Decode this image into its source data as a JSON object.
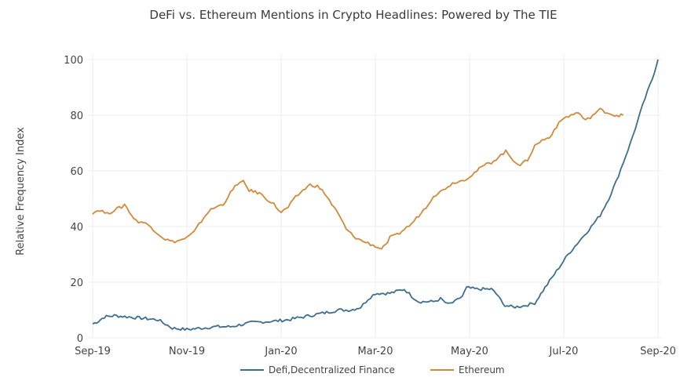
{
  "chart_data": {
    "type": "line",
    "title": "DeFi vs. Ethereum Mentions in Crypto Headlines: Powered by The TIE",
    "xlabel": "",
    "ylabel": "Relative Frequency Index",
    "ylim": [
      0,
      100
    ],
    "yticks": [
      0,
      20,
      40,
      60,
      80,
      100
    ],
    "xticks": [
      "Sep-19",
      "Nov-19",
      "Jan-20",
      "Mar-20",
      "May-20",
      "Jul-20",
      "Sep-20"
    ],
    "x_range_days": [
      0,
      366
    ],
    "grid": true,
    "legend_position": "bottom",
    "series": [
      {
        "name": "Defi,Decentralized Finance",
        "color": "#3d6e8f",
        "points": [
          [
            0,
            5
          ],
          [
            4,
            6
          ],
          [
            8,
            7.5
          ],
          [
            15,
            8
          ],
          [
            25,
            7.5
          ],
          [
            35,
            7
          ],
          [
            45,
            6.5
          ],
          [
            50,
            5
          ],
          [
            55,
            3.5
          ],
          [
            65,
            3
          ],
          [
            75,
            3.5
          ],
          [
            85,
            4
          ],
          [
            95,
            4
          ],
          [
            110,
            5.5
          ],
          [
            125,
            6
          ],
          [
            135,
            6.5
          ],
          [
            150,
            8
          ],
          [
            160,
            9
          ],
          [
            170,
            10
          ],
          [
            178,
            10
          ],
          [
            185,
            11
          ],
          [
            190,
            14
          ],
          [
            195,
            16
          ],
          [
            205,
            16
          ],
          [
            215,
            17.5
          ],
          [
            220,
            15
          ],
          [
            225,
            13
          ],
          [
            235,
            13
          ],
          [
            240,
            14
          ],
          [
            245,
            12
          ],
          [
            250,
            13
          ],
          [
            255,
            15
          ],
          [
            258,
            18
          ],
          [
            265,
            17.5
          ],
          [
            275,
            17.5
          ],
          [
            280,
            15
          ],
          [
            283,
            12
          ],
          [
            290,
            11
          ],
          [
            297,
            11.5
          ],
          [
            305,
            12.5
          ],
          [
            312,
            18
          ],
          [
            320,
            24
          ],
          [
            328,
            30
          ],
          [
            336,
            35
          ],
          [
            344,
            40
          ],
          [
            350,
            44
          ],
          [
            356,
            50
          ],
          [
            361,
            56
          ],
          [
            366,
            63
          ],
          [
            371,
            70
          ],
          [
            376,
            78
          ],
          [
            381,
            86
          ],
          [
            386,
            93
          ],
          [
            390,
            100
          ]
        ]
      },
      {
        "name": "Ethereum",
        "color": "#d4883a",
        "points": [
          [
            0,
            45
          ],
          [
            5,
            46
          ],
          [
            10,
            44.5
          ],
          [
            15,
            46
          ],
          [
            20,
            47
          ],
          [
            22,
            48
          ],
          [
            27,
            44
          ],
          [
            30,
            42
          ],
          [
            35,
            41.5
          ],
          [
            40,
            40
          ],
          [
            45,
            37.5
          ],
          [
            50,
            35.5
          ],
          [
            55,
            34.5
          ],
          [
            60,
            35
          ],
          [
            65,
            36
          ],
          [
            70,
            38
          ],
          [
            75,
            42
          ],
          [
            80,
            45.5
          ],
          [
            85,
            47
          ],
          [
            90,
            48
          ],
          [
            95,
            52
          ],
          [
            100,
            55.5
          ],
          [
            104,
            56
          ],
          [
            108,
            53
          ],
          [
            115,
            52
          ],
          [
            120,
            50
          ],
          [
            125,
            48
          ],
          [
            130,
            45
          ],
          [
            135,
            47
          ],
          [
            140,
            50.5
          ],
          [
            145,
            53
          ],
          [
            150,
            55
          ],
          [
            155,
            54.5
          ],
          [
            160,
            52
          ],
          [
            165,
            48
          ],
          [
            170,
            44
          ],
          [
            175,
            39
          ],
          [
            180,
            36.5
          ],
          [
            185,
            35
          ],
          [
            190,
            34
          ],
          [
            195,
            33
          ],
          [
            198,
            32
          ],
          [
            202,
            33
          ],
          [
            205,
            36
          ],
          [
            210,
            37
          ],
          [
            215,
            39
          ],
          [
            220,
            41
          ],
          [
            225,
            44
          ],
          [
            230,
            47
          ],
          [
            235,
            51
          ],
          [
            240,
            52.5
          ],
          [
            245,
            54.5
          ],
          [
            250,
            56
          ],
          [
            255,
            56.5
          ],
          [
            260,
            58
          ],
          [
            265,
            60
          ],
          [
            270,
            62
          ],
          [
            275,
            63
          ],
          [
            280,
            65
          ],
          [
            285,
            67
          ],
          [
            290,
            64
          ],
          [
            295,
            62
          ],
          [
            300,
            64
          ],
          [
            305,
            69
          ],
          [
            310,
            71
          ],
          [
            315,
            72
          ],
          [
            320,
            76
          ],
          [
            325,
            79
          ],
          [
            330,
            80
          ],
          [
            335,
            81
          ],
          [
            340,
            78
          ],
          [
            345,
            80
          ],
          [
            350,
            82
          ],
          [
            355,
            81
          ],
          [
            360,
            80
          ],
          [
            366,
            80
          ]
        ]
      }
    ]
  }
}
